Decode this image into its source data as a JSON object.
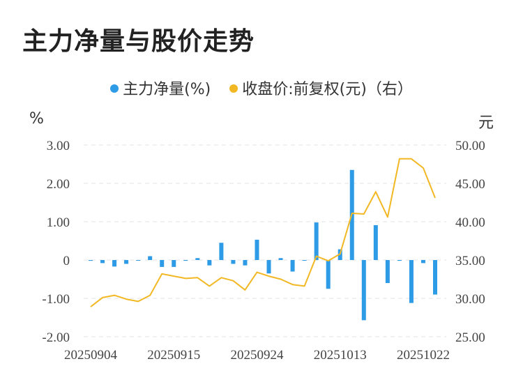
{
  "chart_data": {
    "type": "bar+line",
    "title": "主力净量与股价走势",
    "legend_placement": "top-center",
    "left_unit": "%",
    "right_unit": "元",
    "yleft_ticks": [
      "3.00",
      "2.00",
      "1.00",
      "0",
      "-1.00",
      "-2.00"
    ],
    "yleft_range": [
      -2,
      3
    ],
    "yright_ticks": [
      "50.00",
      "45.00",
      "40.00",
      "35.00",
      "30.00",
      "25.00"
    ],
    "yright_range": [
      25,
      50
    ],
    "x_tick_labels": [
      "20250904",
      "20250915",
      "20250924",
      "20251013",
      "20251022"
    ],
    "x_tick_index": [
      0,
      7,
      14,
      21,
      28
    ],
    "grid": true,
    "series": [
      {
        "name": "主力净量(%)",
        "kind": "bar",
        "axis": "left",
        "color": "#2e9be6",
        "values": [
          -0.02,
          -0.08,
          -0.17,
          -0.1,
          0,
          0.1,
          -0.18,
          -0.18,
          -0.02,
          0.05,
          -0.14,
          0.45,
          -0.1,
          -0.14,
          0.53,
          -0.35,
          0.05,
          -0.3,
          0,
          0.98,
          -0.75,
          0.28,
          2.35,
          -1.57,
          0.91,
          -0.6,
          -0.02,
          -1.12,
          -0.08,
          -0.9
        ]
      },
      {
        "name": "收盘价:前复权(元)（右）",
        "kind": "line",
        "axis": "right",
        "color": "#f2b824",
        "values": [
          28.9,
          30.1,
          30.4,
          29.9,
          29.6,
          30.4,
          33.2,
          32.9,
          32.6,
          32.7,
          31.6,
          32.7,
          32.3,
          31.1,
          33.4,
          32.9,
          32.5,
          31.8,
          31.6,
          35.5,
          34.9,
          35.8,
          41.1,
          41.0,
          43.9,
          40.6,
          48.2,
          48.2,
          47.0,
          43.1
        ]
      }
    ]
  }
}
